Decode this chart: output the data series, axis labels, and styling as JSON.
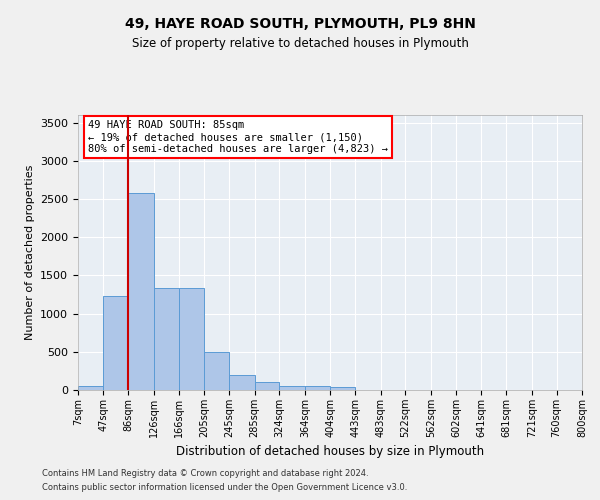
{
  "title1": "49, HAYE ROAD SOUTH, PLYMOUTH, PL9 8HN",
  "title2": "Size of property relative to detached houses in Plymouth",
  "xlabel": "Distribution of detached houses by size in Plymouth",
  "ylabel": "Number of detached properties",
  "bin_labels": [
    "7sqm",
    "47sqm",
    "86sqm",
    "126sqm",
    "166sqm",
    "205sqm",
    "245sqm",
    "285sqm",
    "324sqm",
    "364sqm",
    "404sqm",
    "443sqm",
    "483sqm",
    "522sqm",
    "562sqm",
    "602sqm",
    "641sqm",
    "681sqm",
    "721sqm",
    "760sqm",
    "800sqm"
  ],
  "bin_edges": [
    7,
    47,
    86,
    126,
    166,
    205,
    245,
    285,
    324,
    364,
    404,
    443,
    483,
    522,
    562,
    602,
    641,
    681,
    721,
    760,
    800
  ],
  "bar_values": [
    50,
    1225,
    2575,
    1340,
    1340,
    500,
    190,
    100,
    50,
    50,
    35,
    0,
    0,
    0,
    0,
    0,
    0,
    0,
    0,
    0
  ],
  "bar_color": "#aec6e8",
  "bar_edge_color": "#5b9bd5",
  "bg_color": "#e8eef4",
  "grid_color": "#ffffff",
  "annotation_text": "49 HAYE ROAD SOUTH: 85sqm\n← 19% of detached houses are smaller (1,150)\n80% of semi-detached houses are larger (4,823) →",
  "vline_x": 86,
  "vline_color": "#cc0000",
  "ylim": [
    0,
    3600
  ],
  "yticks": [
    0,
    500,
    1000,
    1500,
    2000,
    2500,
    3000,
    3500
  ],
  "footer1": "Contains HM Land Registry data © Crown copyright and database right 2024.",
  "footer2": "Contains public sector information licensed under the Open Government Licence v3.0."
}
